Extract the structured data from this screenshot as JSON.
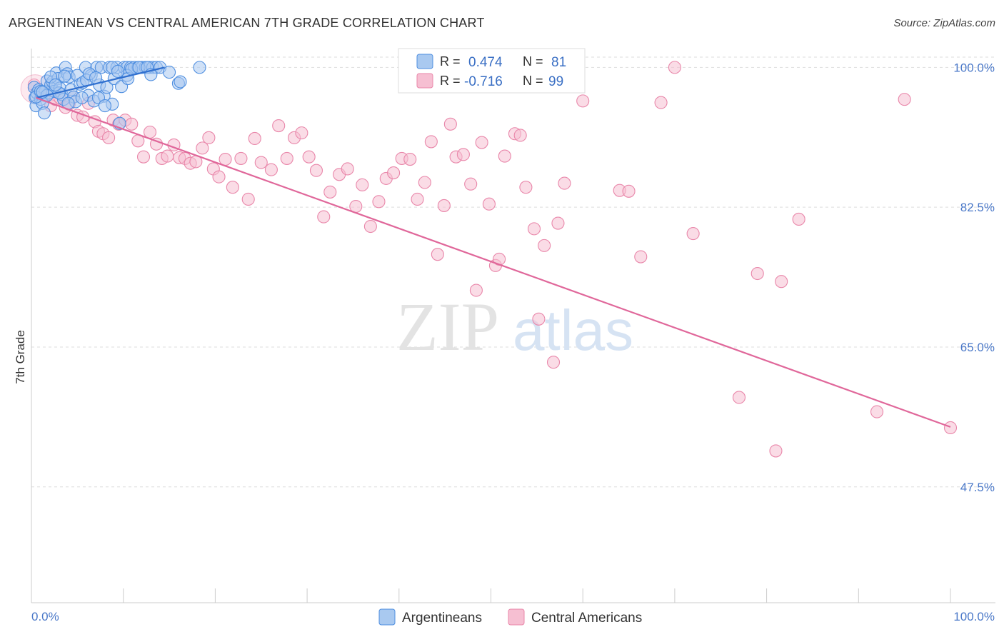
{
  "title": "ARGENTINEAN VS CENTRAL AMERICAN 7TH GRADE CORRELATION CHART",
  "source": "Source: ZipAtlas.com",
  "watermark": {
    "zip": "ZIP",
    "atlas": "atlas"
  },
  "colors": {
    "blue": "#4f8fe0",
    "blue_fill": "#a9c9f0",
    "blue_line": "#2f6fcf",
    "pink": "#e987aa",
    "pink_fill": "#f6bfd2",
    "pink_line": "#e0679a",
    "grid": "#dddddd",
    "tick": "#4a78c8"
  },
  "legend": {
    "r_label": "R =",
    "n_label": "N =",
    "rows": [
      {
        "r": "0.474",
        "n": "81"
      },
      {
        "r": "-0.716",
        "n": "99"
      }
    ]
  },
  "chart_data": {
    "type": "scatter",
    "title": "ARGENTINEAN VS CENTRAL AMERICAN 7TH GRADE CORRELATION CHART",
    "xlabel": "",
    "ylabel": "7th Grade",
    "xlim": [
      0,
      100
    ],
    "ylim": [
      33,
      102
    ],
    "x_tick_labels": [
      "0.0%",
      "100.0%"
    ],
    "y_ticks": [
      100.0,
      82.5,
      65.0,
      47.5
    ],
    "y_tick_labels": [
      "100.0%",
      "82.5%",
      "65.0%",
      "47.5%"
    ],
    "grid": true,
    "legend_position": "bottom-center",
    "series": [
      {
        "name": "Argentineans",
        "trend": {
          "x": [
            0.5,
            14.5
          ],
          "y": [
            96.2,
            100.0
          ]
        },
        "points": [
          [
            0.3,
            97.5
          ],
          [
            0.4,
            96.2
          ],
          [
            0.5,
            95.2
          ],
          [
            0.6,
            96.8
          ],
          [
            0.8,
            97.2
          ],
          [
            1.0,
            96.0
          ],
          [
            1.2,
            95.5
          ],
          [
            1.4,
            94.3
          ],
          [
            1.5,
            97.0
          ],
          [
            1.7,
            98.3
          ],
          [
            1.9,
            96.8
          ],
          [
            2.1,
            97.8
          ],
          [
            2.3,
            98.2
          ],
          [
            2.5,
            97.0
          ],
          [
            2.7,
            99.3
          ],
          [
            2.9,
            98.6
          ],
          [
            3.1,
            97.4
          ],
          [
            3.3,
            96.6
          ],
          [
            3.5,
            96.0
          ],
          [
            3.7,
            100.0
          ],
          [
            3.9,
            99.2
          ],
          [
            4.1,
            98.8
          ],
          [
            4.3,
            97.2
          ],
          [
            4.6,
            96.3
          ],
          [
            4.8,
            95.7
          ],
          [
            5.0,
            99.0
          ],
          [
            5.3,
            97.9
          ],
          [
            5.6,
            98.1
          ],
          [
            5.9,
            100.0
          ],
          [
            6.2,
            96.5
          ],
          [
            6.5,
            99.0
          ],
          [
            6.8,
            95.8
          ],
          [
            7.1,
            100.0
          ],
          [
            7.4,
            97.8
          ],
          [
            7.6,
            100.0
          ],
          [
            7.9,
            96.4
          ],
          [
            8.2,
            97.5
          ],
          [
            8.5,
            100.0
          ],
          [
            8.8,
            95.4
          ],
          [
            9.0,
            98.6
          ],
          [
            9.3,
            100.0
          ],
          [
            9.6,
            93.0
          ],
          [
            9.8,
            97.6
          ],
          [
            10.1,
            100.0
          ],
          [
            10.4,
            100.0
          ],
          [
            10.8,
            100.0
          ],
          [
            11.2,
            100.0
          ],
          [
            11.6,
            100.0
          ],
          [
            12.0,
            100.0
          ],
          [
            12.4,
            100.0
          ],
          [
            12.8,
            100.0
          ],
          [
            13.2,
            100.0
          ],
          [
            13.6,
            100.0
          ],
          [
            14.0,
            100.0
          ],
          [
            16.0,
            98.0
          ],
          [
            16.2,
            98.2
          ],
          [
            10.4,
            99.0
          ],
          [
            18.3,
            100.0
          ],
          [
            0.5,
            96.3
          ],
          [
            1.0,
            97.0
          ],
          [
            1.7,
            96.5
          ],
          [
            2.1,
            98.8
          ],
          [
            3.0,
            96.8
          ],
          [
            6.0,
            98.4
          ],
          [
            7.3,
            96.2
          ],
          [
            8.0,
            95.2
          ],
          [
            10.5,
            98.6
          ],
          [
            1.2,
            96.9
          ],
          [
            2.6,
            97.8
          ],
          [
            3.6,
            98.9
          ],
          [
            4.0,
            95.5
          ],
          [
            5.5,
            96.2
          ],
          [
            6.3,
            99.2
          ],
          [
            7.0,
            98.7
          ],
          [
            8.8,
            100.0
          ],
          [
            9.4,
            99.5
          ],
          [
            10.9,
            99.8
          ],
          [
            11.7,
            100.0
          ],
          [
            12.6,
            100.0
          ],
          [
            13.0,
            99.1
          ],
          [
            15.0,
            99.4
          ]
        ]
      },
      {
        "name": "Central Americans",
        "trend": {
          "x": [
            0.5,
            100.0
          ],
          "y": [
            96.2,
            55.0
          ]
        },
        "points": [
          [
            0.3,
            97.8
          ],
          [
            1.0,
            96.6
          ],
          [
            1.6,
            96.4
          ],
          [
            2.1,
            95.2
          ],
          [
            2.6,
            96.0
          ],
          [
            3.1,
            96.2
          ],
          [
            3.7,
            95.0
          ],
          [
            4.1,
            95.4
          ],
          [
            4.6,
            96.3
          ],
          [
            5.0,
            94.0
          ],
          [
            5.6,
            93.8
          ],
          [
            6.2,
            95.5
          ],
          [
            6.9,
            93.2
          ],
          [
            7.3,
            92.0
          ],
          [
            7.8,
            91.7
          ],
          [
            8.4,
            91.2
          ],
          [
            8.9,
            93.4
          ],
          [
            9.5,
            92.9
          ],
          [
            10.2,
            93.4
          ],
          [
            10.9,
            92.9
          ],
          [
            11.6,
            90.8
          ],
          [
            12.2,
            88.8
          ],
          [
            12.9,
            91.9
          ],
          [
            13.6,
            90.4
          ],
          [
            14.2,
            88.6
          ],
          [
            14.8,
            88.9
          ],
          [
            15.5,
            90.3
          ],
          [
            16.1,
            88.7
          ],
          [
            16.7,
            88.6
          ],
          [
            17.3,
            88.0
          ],
          [
            17.9,
            88.2
          ],
          [
            18.6,
            89.9
          ],
          [
            19.3,
            91.2
          ],
          [
            19.8,
            87.3
          ],
          [
            20.4,
            86.3
          ],
          [
            21.1,
            88.5
          ],
          [
            21.9,
            85.0
          ],
          [
            22.8,
            88.6
          ],
          [
            23.6,
            83.5
          ],
          [
            24.3,
            91.1
          ],
          [
            25.0,
            88.1
          ],
          [
            26.1,
            87.2
          ],
          [
            26.9,
            92.7
          ],
          [
            27.8,
            88.6
          ],
          [
            28.6,
            91.2
          ],
          [
            29.4,
            91.8
          ],
          [
            30.2,
            88.8
          ],
          [
            31.0,
            87.1
          ],
          [
            31.8,
            81.3
          ],
          [
            32.5,
            84.4
          ],
          [
            33.5,
            86.6
          ],
          [
            34.4,
            87.3
          ],
          [
            35.3,
            82.6
          ],
          [
            36.0,
            85.3
          ],
          [
            36.9,
            80.1
          ],
          [
            37.8,
            83.2
          ],
          [
            38.6,
            86.1
          ],
          [
            39.4,
            86.8
          ],
          [
            40.3,
            88.6
          ],
          [
            41.2,
            88.5
          ],
          [
            42.0,
            83.5
          ],
          [
            42.8,
            85.6
          ],
          [
            43.5,
            90.7
          ],
          [
            44.2,
            76.6
          ],
          [
            44.9,
            82.7
          ],
          [
            45.6,
            92.9
          ],
          [
            46.2,
            88.8
          ],
          [
            47.0,
            89.1
          ],
          [
            47.8,
            85.4
          ],
          [
            48.4,
            72.1
          ],
          [
            49.0,
            90.6
          ],
          [
            49.8,
            82.9
          ],
          [
            50.5,
            75.2
          ],
          [
            50.9,
            76.0
          ],
          [
            51.5,
            88.9
          ],
          [
            52.6,
            91.7
          ],
          [
            53.2,
            91.5
          ],
          [
            53.8,
            85.0
          ],
          [
            54.7,
            79.8
          ],
          [
            55.2,
            68.5
          ],
          [
            55.8,
            77.7
          ],
          [
            56.8,
            63.1
          ],
          [
            57.3,
            80.5
          ],
          [
            58.0,
            85.5
          ],
          [
            60.0,
            95.8
          ],
          [
            64.0,
            84.6
          ],
          [
            65.0,
            84.5
          ],
          [
            66.3,
            76.3
          ],
          [
            68.5,
            95.6
          ],
          [
            70.0,
            100.0
          ],
          [
            72.0,
            79.2
          ],
          [
            77.0,
            58.7
          ],
          [
            79.0,
            74.2
          ],
          [
            81.0,
            52.0
          ],
          [
            81.6,
            73.2
          ],
          [
            83.5,
            81.0
          ],
          [
            92.0,
            56.9
          ],
          [
            95.0,
            96.0
          ],
          [
            100.0,
            54.9
          ]
        ]
      }
    ]
  },
  "axis": {
    "ylabel": "7th Grade",
    "x_min_label": "0.0%",
    "x_max_label": "100.0%"
  },
  "bottom_legend": {
    "items": [
      "Argentineans",
      "Central Americans"
    ]
  }
}
